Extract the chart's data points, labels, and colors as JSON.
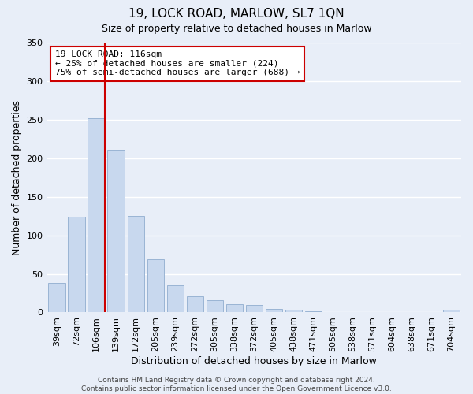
{
  "title": "19, LOCK ROAD, MARLOW, SL7 1QN",
  "subtitle": "Size of property relative to detached houses in Marlow",
  "xlabel": "Distribution of detached houses by size in Marlow",
  "ylabel": "Number of detached properties",
  "bar_labels": [
    "39sqm",
    "72sqm",
    "106sqm",
    "139sqm",
    "172sqm",
    "205sqm",
    "239sqm",
    "272sqm",
    "305sqm",
    "338sqm",
    "372sqm",
    "405sqm",
    "438sqm",
    "471sqm",
    "505sqm",
    "538sqm",
    "571sqm",
    "604sqm",
    "638sqm",
    "671sqm",
    "704sqm"
  ],
  "bar_values": [
    38,
    124,
    252,
    211,
    125,
    69,
    35,
    21,
    16,
    11,
    10,
    5,
    4,
    1,
    0,
    0,
    0,
    0,
    0,
    0,
    4
  ],
  "bar_color": "#c8d8ee",
  "bar_edge_color": "#9ab4d4",
  "vline_color": "#cc0000",
  "ylim": [
    0,
    350
  ],
  "yticks": [
    0,
    50,
    100,
    150,
    200,
    250,
    300,
    350
  ],
  "annotation_text": "19 LOCK ROAD: 116sqm\n← 25% of detached houses are smaller (224)\n75% of semi-detached houses are larger (688) →",
  "annotation_box_color": "#ffffff",
  "annotation_box_edge": "#cc0000",
  "footer_line1": "Contains HM Land Registry data © Crown copyright and database right 2024.",
  "footer_line2": "Contains public sector information licensed under the Open Government Licence v3.0.",
  "background_color": "#e8eef8",
  "grid_color": "#ffffff",
  "title_fontsize": 11,
  "subtitle_fontsize": 9,
  "xlabel_fontsize": 9,
  "ylabel_fontsize": 9,
  "tick_fontsize": 8,
  "footer_fontsize": 6.5
}
